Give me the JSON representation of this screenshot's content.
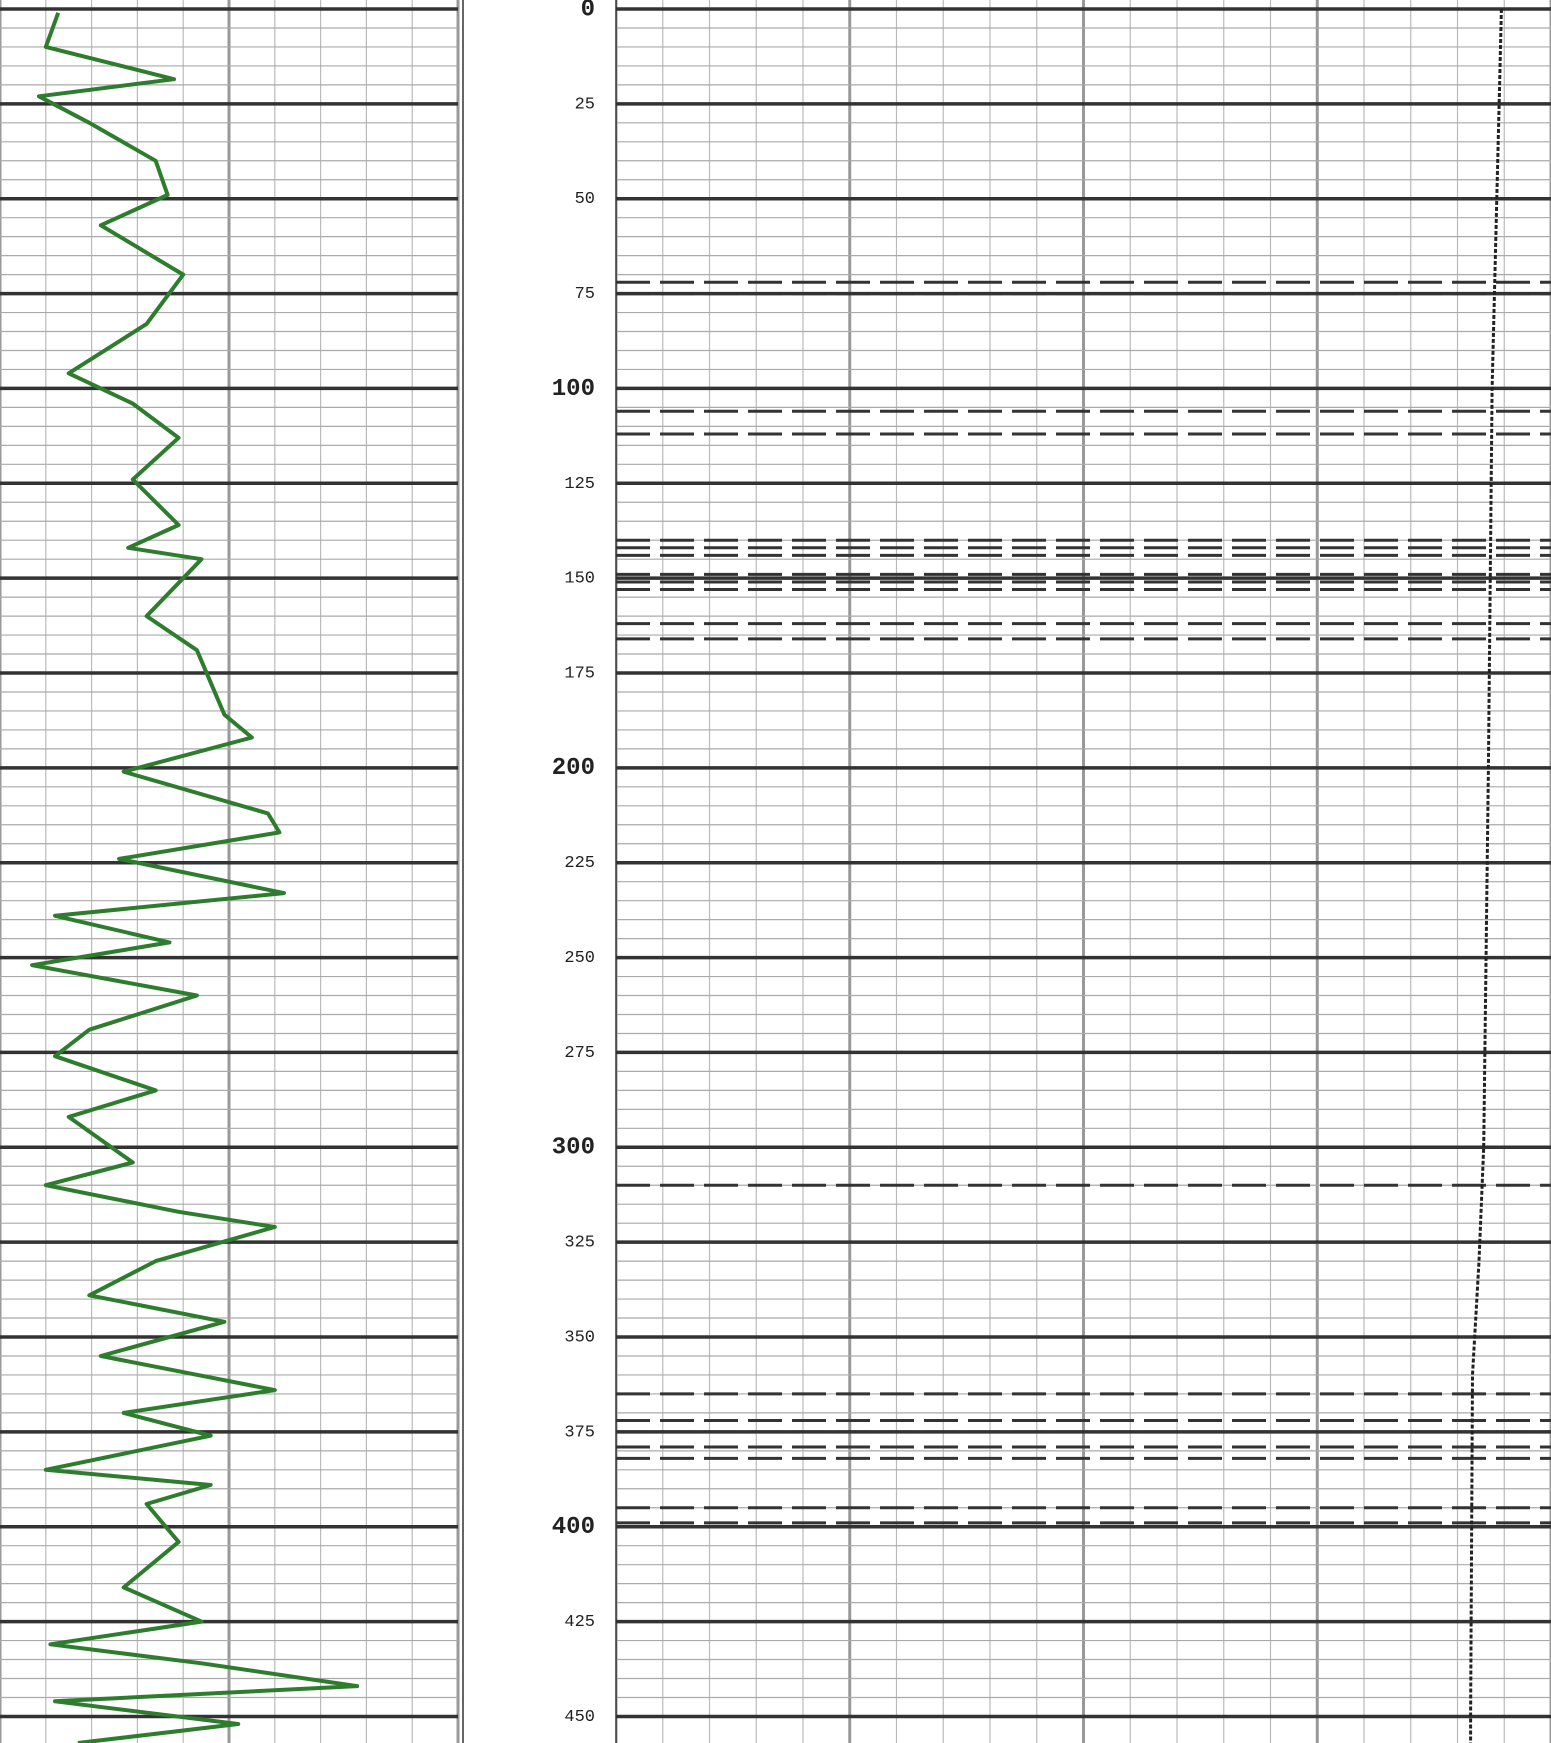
{
  "chart_data": {
    "type": "well-log",
    "ylim": [
      0,
      457
    ],
    "yticks": [
      0,
      25,
      50,
      75,
      100,
      125,
      150,
      175,
      200,
      225,
      250,
      275,
      300,
      325,
      350,
      375,
      400,
      425,
      450
    ],
    "grid": true,
    "markers": [
      72,
      75,
      106,
      112,
      140,
      142,
      144,
      149,
      151,
      153,
      162,
      166,
      310,
      365,
      372,
      375,
      379,
      382,
      395,
      399
    ],
    "series": [
      {
        "track": "left",
        "color": "#2e7d2e",
        "xlim": [
          0,
          100
        ],
        "depth": [
          1,
          10,
          18.5,
          23,
          30,
          40,
          49,
          57,
          70,
          83,
          96,
          104,
          113,
          124,
          136,
          142,
          145,
          160,
          169,
          186,
          192,
          201,
          212,
          217,
          224,
          233,
          239,
          246,
          252,
          260,
          269,
          276,
          285,
          292,
          304,
          310,
          317,
          321,
          330,
          339,
          346,
          355,
          364,
          370,
          376,
          385,
          389,
          394,
          404,
          416,
          425,
          431,
          436,
          442,
          446,
          452,
          457
        ],
        "values": [
          12.7,
          10,
          38,
          8.5,
          19.5,
          34,
          36.6,
          22,
          40,
          32,
          15,
          29,
          39,
          29,
          39,
          28,
          44,
          32,
          43,
          49,
          55,
          27,
          58.5,
          61,
          26,
          62,
          12,
          37,
          7,
          43,
          19.5,
          12,
          34,
          15,
          29,
          10,
          39,
          60,
          34,
          19.5,
          49,
          22,
          60,
          27,
          46,
          10,
          46,
          32,
          39,
          27,
          44,
          11,
          44,
          78,
          12,
          52,
          17
        ]
      },
      {
        "track": "right",
        "color": "#222222",
        "dashed": true,
        "xlim": [
          0,
          100
        ],
        "depth": [
          0,
          20,
          100,
          200,
          300,
          330,
          360,
          450,
          457
        ],
        "values": [
          94.7,
          94.5,
          93.7,
          93.3,
          92.8,
          92.3,
          91.6,
          91.4,
          91.4
        ]
      }
    ]
  }
}
